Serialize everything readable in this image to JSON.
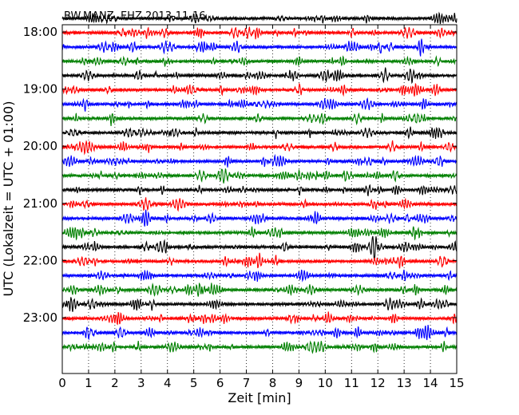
{
  "chart_data": {
    "type": "line",
    "title": "BW.MANZ..EHZ 2013-11-16",
    "xlabel": "Zeit  [min]",
    "ylabel": "UTC (Lokalzeit = UTC + 01:00)",
    "xlim": [
      0,
      15
    ],
    "x_ticks": [
      "0",
      "1",
      "2",
      "3",
      "4",
      "5",
      "6",
      "7",
      "8",
      "9",
      "10",
      "11",
      "12",
      "13",
      "14",
      "15"
    ],
    "y_ticks": [
      "18:00",
      "19:00",
      "20:00",
      "21:00",
      "22:00",
      "23:00"
    ],
    "grid": {
      "x": "dotted",
      "y": false
    },
    "trace_colors": [
      "#000000",
      "#ff0000",
      "#0000ff",
      "#008000"
    ],
    "series": [
      {
        "start": "17:45",
        "values": []
      },
      {
        "start": "18:00",
        "values": []
      },
      {
        "start": "18:15",
        "values": []
      },
      {
        "start": "18:30",
        "values": []
      },
      {
        "start": "18:45",
        "values": []
      },
      {
        "start": "19:00",
        "values": []
      },
      {
        "start": "19:15",
        "values": []
      },
      {
        "start": "19:30",
        "values": []
      },
      {
        "start": "19:45",
        "values": []
      },
      {
        "start": "20:00",
        "values": []
      },
      {
        "start": "20:15",
        "values": []
      },
      {
        "start": "20:30",
        "values": []
      },
      {
        "start": "20:45",
        "values": []
      },
      {
        "start": "21:00",
        "values": []
      },
      {
        "start": "21:15",
        "values": []
      },
      {
        "start": "21:30",
        "values": []
      },
      {
        "start": "21:45",
        "values": []
      },
      {
        "start": "22:00",
        "values": []
      },
      {
        "start": "22:15",
        "values": []
      },
      {
        "start": "22:30",
        "values": []
      },
      {
        "start": "22:45",
        "values": []
      },
      {
        "start": "23:00",
        "values": []
      },
      {
        "start": "23:15",
        "values": []
      },
      {
        "start": "23:30",
        "values": []
      }
    ]
  }
}
